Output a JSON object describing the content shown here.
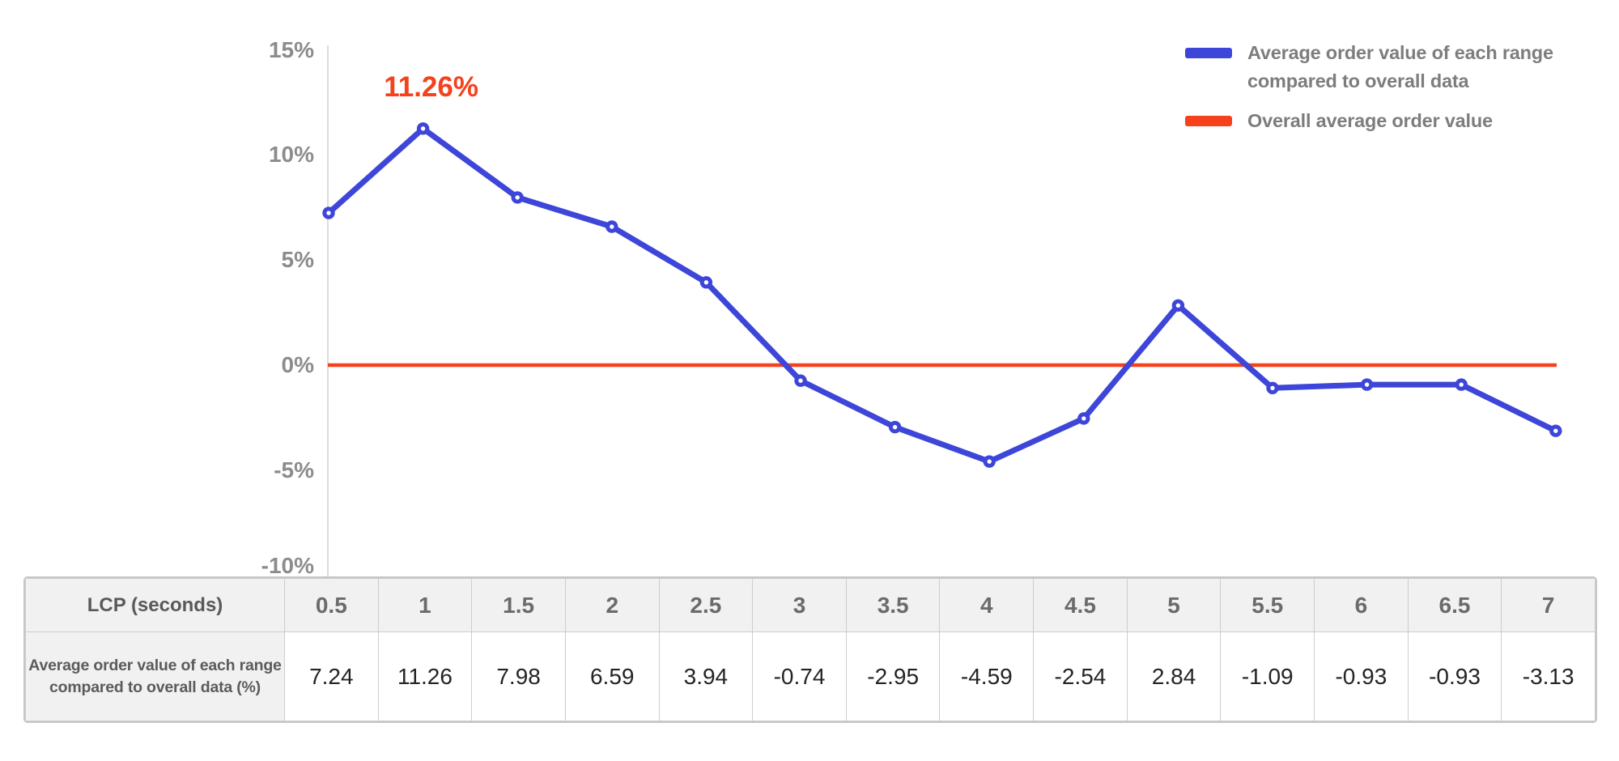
{
  "chart_data": {
    "type": "line",
    "title": "",
    "xlabel": "LCP (seconds)",
    "ylabel": "",
    "x": [
      0.5,
      1,
      1.5,
      2,
      2.5,
      3,
      3.5,
      4,
      4.5,
      5,
      5.5,
      6,
      6.5,
      7
    ],
    "series": [
      {
        "name": "Average order value of each range compared to overall data",
        "type": "line-with-markers",
        "color": "#3d46d8",
        "values": [
          7.24,
          11.26,
          7.98,
          6.59,
          3.94,
          -0.74,
          -2.95,
          -4.59,
          -2.54,
          2.84,
          -1.09,
          -0.93,
          -0.93,
          -3.13
        ]
      },
      {
        "name": "Overall average order value",
        "type": "constant-line",
        "color": "#f5411c",
        "constant": 0
      }
    ],
    "ylim": [
      -10,
      15
    ],
    "yticks": [
      "15%",
      "10%",
      "5%",
      "0%",
      "-5%",
      "-10%"
    ],
    "grid": false,
    "legend_position": "top-right",
    "axis_color": "#dcdcdc",
    "tick_color": "#8c8c8c",
    "annotation": {
      "label": "11.26%",
      "x": 1,
      "value": 11.26,
      "color": "#f5411c"
    }
  },
  "table": {
    "header_label": "LCP (seconds)",
    "row_label": "Average order value of each range compared to overall data (%)",
    "columns": [
      "0.5",
      "1",
      "1.5",
      "2",
      "2.5",
      "3",
      "3.5",
      "4",
      "4.5",
      "5",
      "5.5",
      "6",
      "6.5",
      "7"
    ],
    "values": [
      "7.24",
      "11.26",
      "7.98",
      "6.59",
      "3.94",
      "-0.74",
      "-2.95",
      "-4.59",
      "-2.54",
      "2.84",
      "-1.09",
      "-0.93",
      "-0.93",
      "-3.13"
    ]
  }
}
